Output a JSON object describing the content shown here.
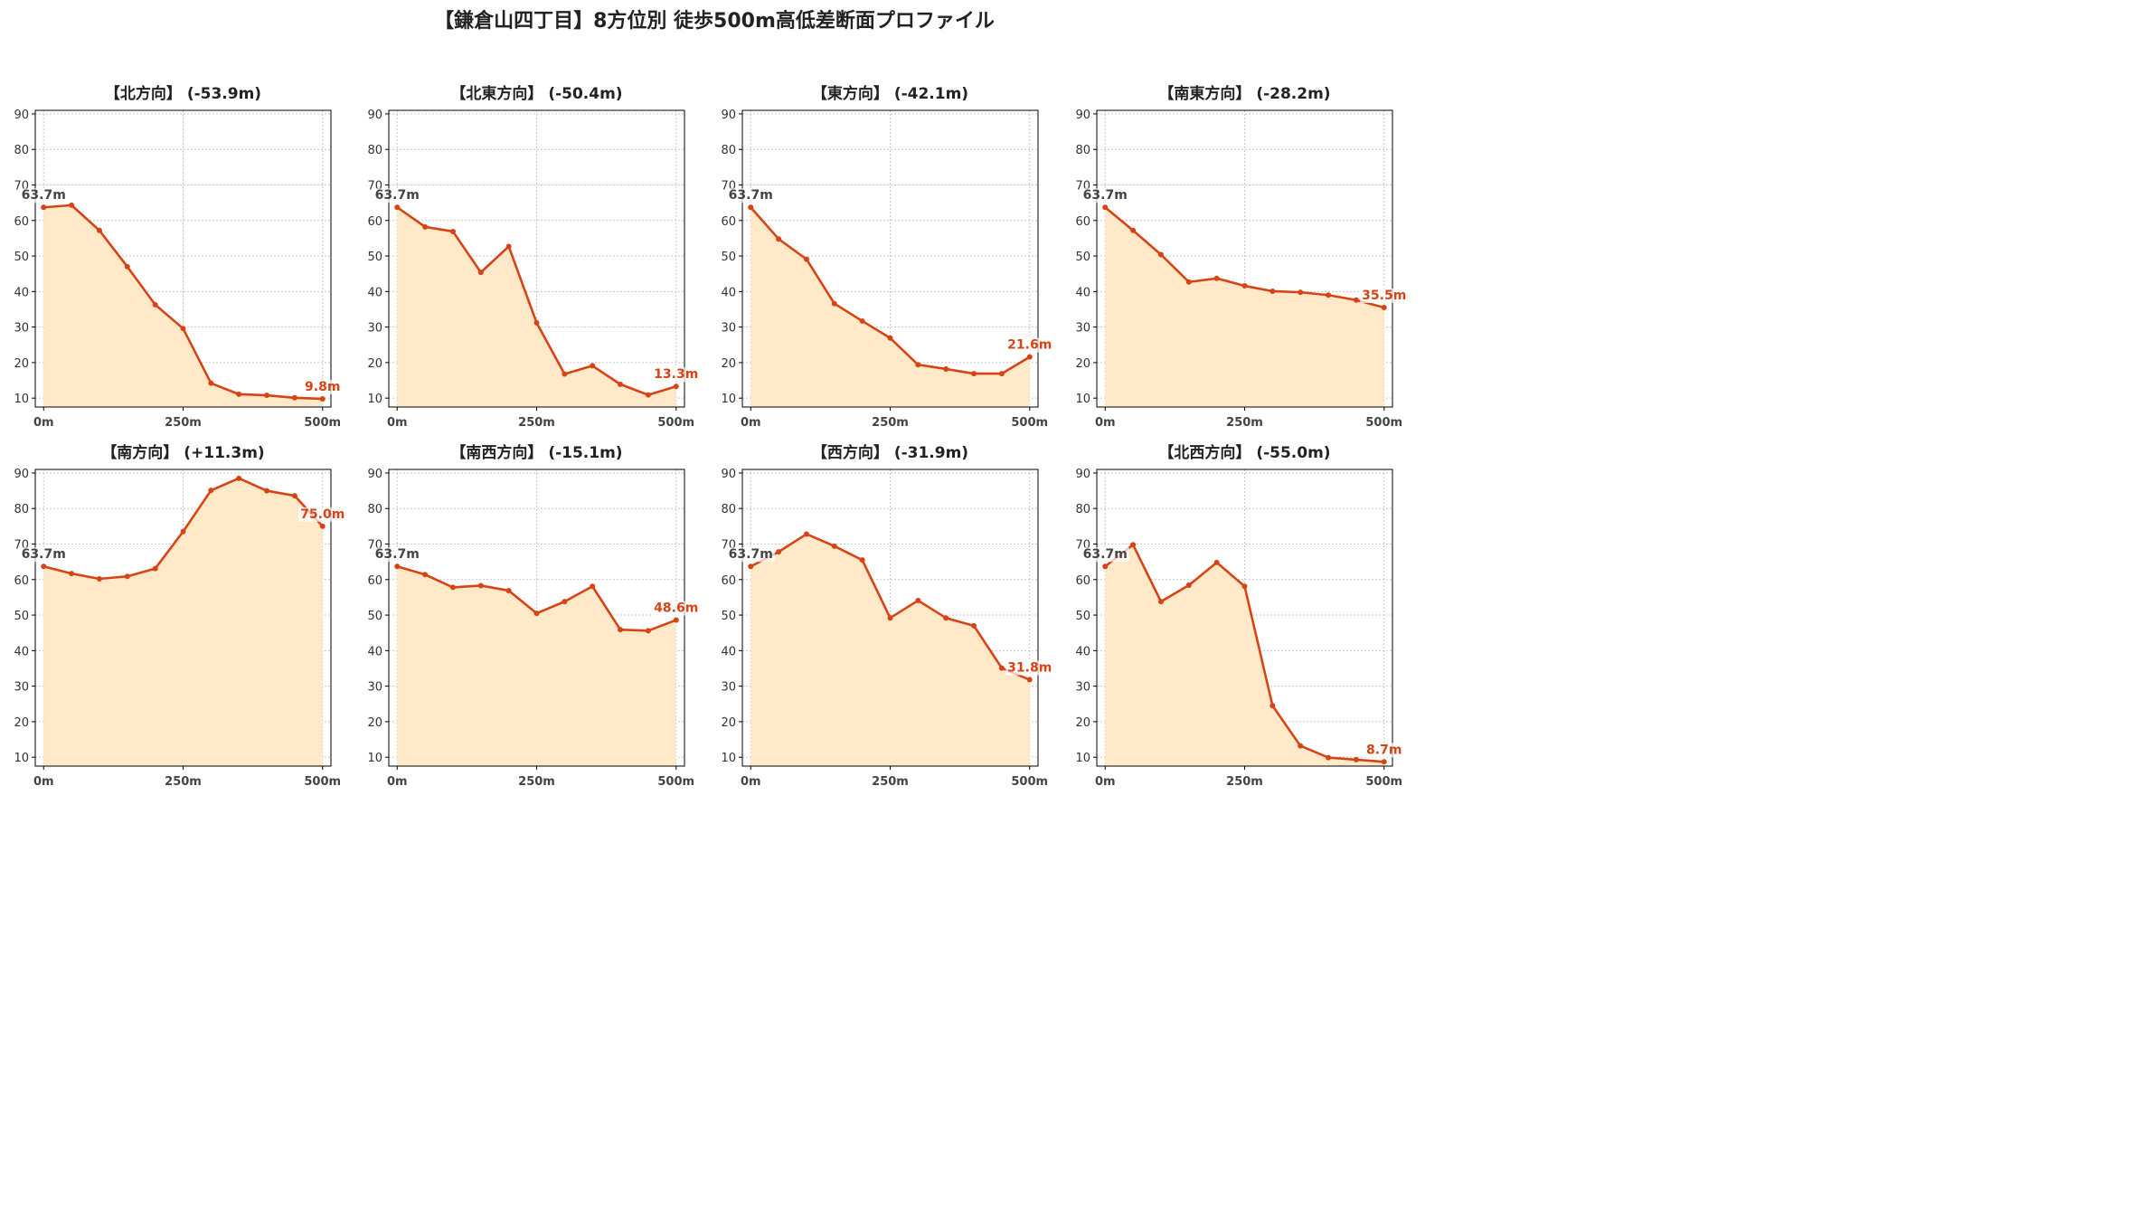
{
  "title": "【鎌倉山四丁目】8方位別 徒歩500m高低差断面プロファイル",
  "colors": {
    "line": "#d84315",
    "fill": "#ffe9c8",
    "grid": "#c8c8c8",
    "axis": "#000000",
    "start_label": "#444444",
    "end_label": "#d84315"
  },
  "chart_data": [
    {
      "type": "area",
      "title": "【北方向】 (-53.9m)",
      "x": [
        0,
        50,
        100,
        150,
        200,
        250,
        300,
        350,
        400,
        450,
        500
      ],
      "values": [
        63.7,
        64.3,
        57.2,
        47.0,
        36.3,
        29.6,
        14.2,
        11.1,
        10.8,
        10.1,
        9.8
      ],
      "start_label": "63.7m",
      "end_label": "9.8m"
    },
    {
      "type": "area",
      "title": "【北東方向】 (-50.4m)",
      "x": [
        0,
        50,
        100,
        150,
        200,
        250,
        300,
        350,
        400,
        450,
        500
      ],
      "values": [
        63.7,
        58.2,
        56.9,
        45.4,
        52.7,
        31.2,
        16.8,
        19.1,
        13.9,
        10.9,
        13.3
      ],
      "start_label": "63.7m",
      "end_label": "13.3m"
    },
    {
      "type": "area",
      "title": "【東方向】 (-42.1m)",
      "x": [
        0,
        50,
        100,
        150,
        200,
        250,
        300,
        350,
        400,
        450,
        500
      ],
      "values": [
        63.7,
        54.8,
        49.1,
        36.6,
        31.7,
        26.9,
        19.4,
        18.2,
        16.9,
        16.9,
        21.6
      ],
      "start_label": "63.7m",
      "end_label": "21.6m"
    },
    {
      "type": "area",
      "title": "【南東方向】 (-28.2m)",
      "x": [
        0,
        50,
        100,
        150,
        200,
        250,
        300,
        350,
        400,
        450,
        500
      ],
      "values": [
        63.7,
        57.2,
        50.4,
        42.7,
        43.7,
        41.6,
        40.1,
        39.8,
        39.0,
        37.6,
        35.5
      ],
      "start_label": "63.7m",
      "end_label": "35.5m"
    },
    {
      "type": "area",
      "title": "【南方向】 (+11.3m)",
      "x": [
        0,
        50,
        100,
        150,
        200,
        250,
        300,
        350,
        400,
        450,
        500
      ],
      "values": [
        63.7,
        61.7,
        60.2,
        60.9,
        63.1,
        73.5,
        85.1,
        88.5,
        85.0,
        83.6,
        75.0
      ],
      "start_label": "63.7m",
      "end_label": "75.0m"
    },
    {
      "type": "area",
      "title": "【南西方向】 (-15.1m)",
      "x": [
        0,
        50,
        100,
        150,
        200,
        250,
        300,
        350,
        400,
        450,
        500
      ],
      "values": [
        63.7,
        61.4,
        57.8,
        58.3,
        56.9,
        50.5,
        53.8,
        58.1,
        45.9,
        45.6,
        48.6
      ],
      "start_label": "63.7m",
      "end_label": "48.6m"
    },
    {
      "type": "area",
      "title": "【西方向】 (-31.9m)",
      "x": [
        0,
        50,
        100,
        150,
        200,
        250,
        300,
        350,
        400,
        450,
        500
      ],
      "values": [
        63.7,
        67.8,
        72.8,
        69.4,
        65.5,
        49.2,
        54.1,
        49.2,
        47.0,
        35.1,
        31.8
      ],
      "start_label": "63.7m",
      "end_label": "31.8m"
    },
    {
      "type": "area",
      "title": "【北西方向】 (-55.0m)",
      "x": [
        0,
        50,
        100,
        150,
        200,
        250,
        300,
        350,
        400,
        450,
        500
      ],
      "values": [
        63.7,
        69.8,
        53.8,
        58.4,
        64.8,
        58.1,
        24.5,
        13.2,
        9.9,
        9.3,
        8.7
      ],
      "start_label": "63.7m",
      "end_label": "8.7m"
    }
  ],
  "axes": {
    "xticks": [
      0,
      250,
      500
    ],
    "xtick_labels": [
      "0m",
      "250m",
      "500m"
    ],
    "xlim": [
      -15,
      515
    ],
    "yticks": [
      10,
      20,
      30,
      40,
      50,
      60,
      70,
      80,
      90
    ],
    "ylim": [
      7.5,
      91
    ],
    "grid": true
  }
}
